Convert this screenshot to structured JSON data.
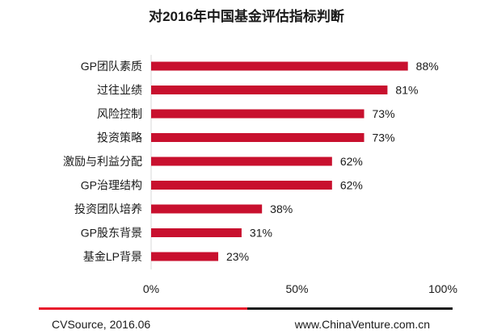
{
  "chart_data": {
    "type": "bar",
    "orientation": "horizontal",
    "title": "对2016年中国基金评估指标判断",
    "categories": [
      "GP团队素质",
      "过往业绩",
      "风险控制",
      "投资策略",
      "激励与利益分配",
      "GP治理结构",
      "投资团队培养",
      "GP股东背景",
      "基金LP背景"
    ],
    "values": [
      88,
      81,
      73,
      73,
      62,
      62,
      38,
      31,
      23
    ],
    "value_labels": [
      "88%",
      "81%",
      "73%",
      "73%",
      "62%",
      "62%",
      "38%",
      "31%",
      "23%"
    ],
    "xlim": [
      0,
      100
    ],
    "x_ticks": [
      "0%",
      "50%",
      "100%"
    ],
    "x_tick_values": [
      0,
      50,
      100
    ],
    "xlabel": "",
    "ylabel": "",
    "grid": false,
    "legend": "none",
    "bar_color": "#c8102e"
  },
  "footer": {
    "source": "CVSource, 2016.06",
    "website": "www.ChinaVenture.com.cn"
  },
  "colors": {
    "accent_red": "#e8182b",
    "rule_black": "#1a1a1a"
  }
}
